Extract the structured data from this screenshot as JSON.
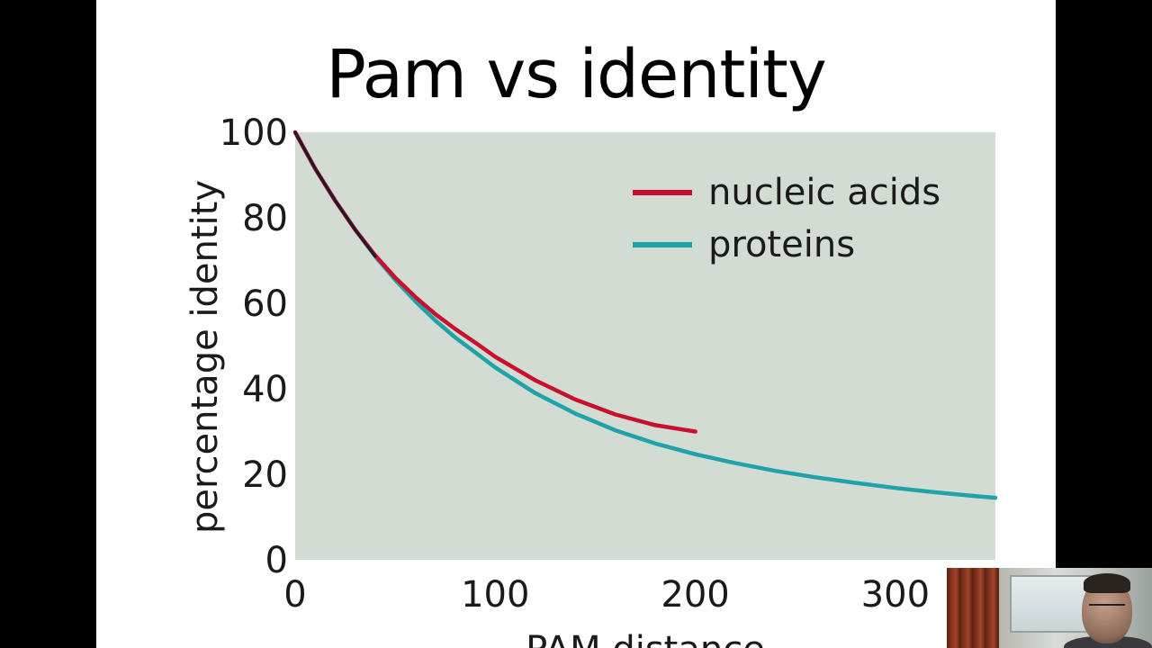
{
  "slide": {
    "title": "Pam vs identity"
  },
  "webcam": {
    "icon": "webcam-presenter-icon"
  },
  "chart_data": {
    "type": "line",
    "title": "",
    "xlabel": "PAM distance",
    "ylabel": "percentage identity",
    "xlim": [
      0,
      350
    ],
    "ylim": [
      0,
      100
    ],
    "x_ticks": [
      0,
      100,
      200,
      300
    ],
    "y_ticks": [
      0,
      20,
      40,
      60,
      80,
      100
    ],
    "grid": false,
    "background_color": "#d2dcd3",
    "legend": {
      "placement": "top-right"
    },
    "series": [
      {
        "name": "proteins",
        "color": "#1fa3a8",
        "x": [
          0,
          10,
          20,
          30,
          40,
          50,
          60,
          70,
          80,
          90,
          100,
          120,
          140,
          160,
          180,
          200,
          220,
          240,
          260,
          280,
          300,
          320,
          340,
          350
        ],
        "y": [
          100,
          91.5,
          84,
          77.2,
          71,
          65.5,
          60.5,
          56,
          52,
          48.5,
          45,
          39,
          34.2,
          30.3,
          27.2,
          24.7,
          22.6,
          20.8,
          19.3,
          18,
          16.8,
          15.8,
          14.9,
          14.5
        ]
      },
      {
        "name": "nucleic acids",
        "color": "#c8102e",
        "x": [
          0,
          10,
          20,
          30,
          40,
          50,
          60,
          70,
          80,
          90,
          100,
          120,
          140,
          160,
          180,
          200
        ],
        "y": [
          100,
          91.5,
          84,
          77.2,
          71.2,
          66,
          61.5,
          57.5,
          54,
          50.8,
          47.5,
          42,
          37.5,
          34,
          31.5,
          30
        ]
      }
    ]
  }
}
